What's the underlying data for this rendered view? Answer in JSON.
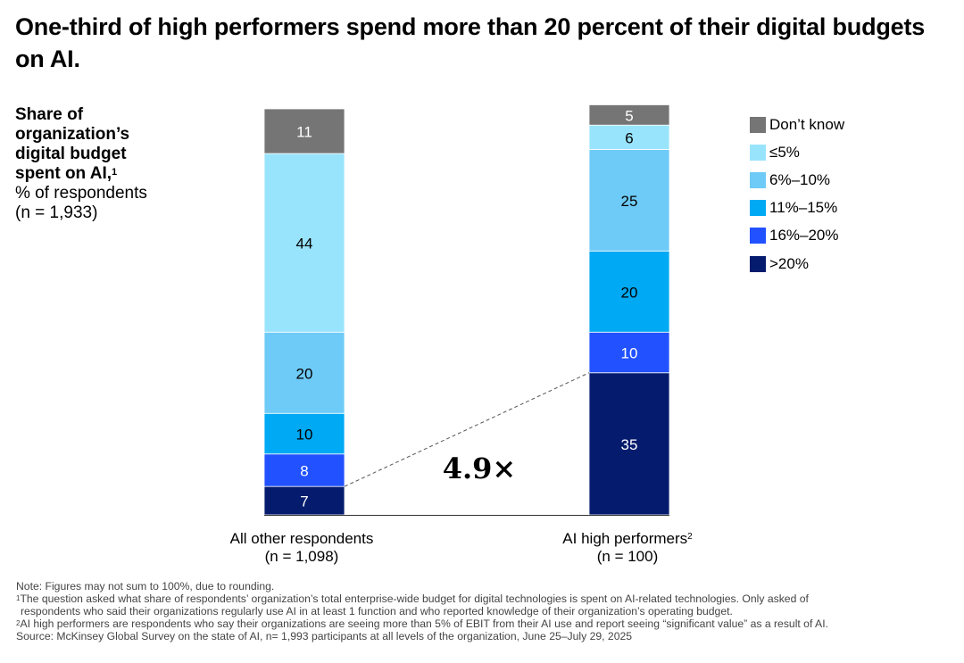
{
  "title": "One-third of high performers spend more than 20 percent of their digital budgets on AI.",
  "y_axis_label": {
    "bold_lines": [
      "Share of",
      "organization’s",
      "digital budget",
      "spent on AI,"
    ],
    "bold_superscript": "1",
    "lines": [
      "% of respondents",
      "(n = 1,933)"
    ]
  },
  "chart_data": {
    "type": "bar",
    "stacked": true,
    "title": "One-third of high performers spend more than 20 percent of their digital budgets on AI.",
    "ylabel": "Share of organization’s digital budget spent on AI, % of respondents (n = 1,933)",
    "xlabel": "",
    "categories": [
      "All other respondents",
      "AI high performers"
    ],
    "category_subtitles": [
      "(n = 1,098)",
      "(n = 100)"
    ],
    "category_superscripts": [
      "",
      "2"
    ],
    "stack_order_bottom_to_top": [
      ">20%",
      "16%–20%",
      "11%–15%",
      "6%–10%",
      "≤5%",
      "Don’t know"
    ],
    "series": [
      {
        "name": ">20%",
        "color": "#051c6e",
        "label_color": "#ffffff",
        "values": [
          7,
          35
        ]
      },
      {
        "name": "16%–20%",
        "color": "#2251ff",
        "label_color": "#ffffff",
        "values": [
          8,
          10
        ]
      },
      {
        "name": "11%–15%",
        "color": "#00a9f4",
        "label_color": "#000000",
        "values": [
          10,
          20
        ]
      },
      {
        "name": "6%–10%",
        "color": "#6ecbf7",
        "label_color": "#000000",
        "values": [
          20,
          25
        ]
      },
      {
        "name": "≤5%",
        "color": "#99e4fd",
        "label_color": "#000000",
        "values": [
          44,
          6
        ]
      },
      {
        "name": "Don’t know",
        "color": "#757575",
        "label_color": "#ffffff",
        "values": [
          11,
          5
        ]
      }
    ],
    "legend_order": [
      "Don’t know",
      "≤5%",
      "6%–10%",
      "11%–15%",
      "16%–20%",
      ">20%"
    ],
    "legend_position": "right",
    "annotation": {
      "text": "4.9×",
      "connects": [
        ">20% of All other respondents",
        ">20% of AI high performers"
      ]
    },
    "ylim": [
      0,
      100
    ],
    "grid": false
  },
  "notes": {
    "note": "Note: Figures may not sum to 100%, due to rounding.",
    "footnote1_mark": "1",
    "footnote1_line1": "The question asked what share of respondents’ organization’s total enterprise-wide budget for digital technologies is spent on AI-related technologies. Only asked of",
    "footnote1_line2": "respondents who said their organizations regularly use AI in at least 1 function and who reported knowledge of their organization’s operating budget.",
    "footnote2_mark": "2",
    "footnote2": "AI high performers are respondents who say their organizations are seeing more than 5% of EBIT from their AI use and report seeing “significant value” as a result of AI.",
    "source": "Source: McKinsey Global Survey on the state of AI, n= 1,993 participants at all levels of the organization, June 25–July 29, 2025"
  }
}
